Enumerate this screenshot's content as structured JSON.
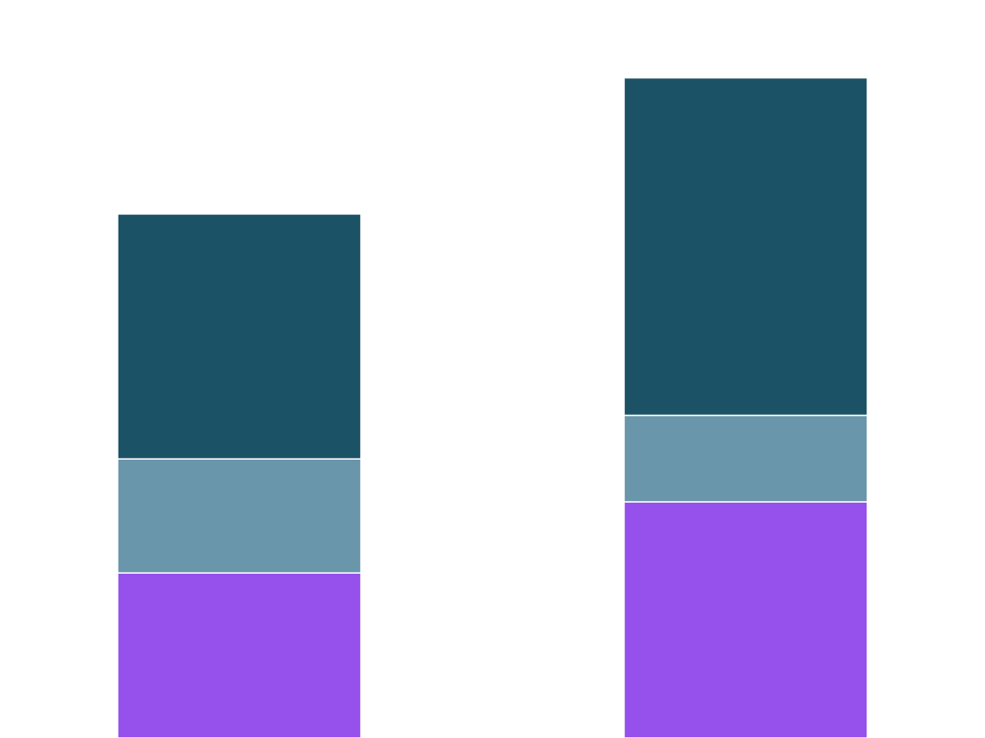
{
  "chart_data": {
    "type": "bar",
    "stacked": true,
    "title": "",
    "xlabel": "",
    "ylabel": "",
    "categories": [
      "",
      ""
    ],
    "ylim": [
      0,
      110
    ],
    "grid": false,
    "legend": "none",
    "series": [
      {
        "values": [
          24.6,
          35.2
        ],
        "color": "#9650eb"
      },
      {
        "values": [
          17.0,
          12.9
        ],
        "color": "#6996aa"
      },
      {
        "values": [
          36.5,
          50.3
        ],
        "color": "#1b5266"
      }
    ]
  }
}
